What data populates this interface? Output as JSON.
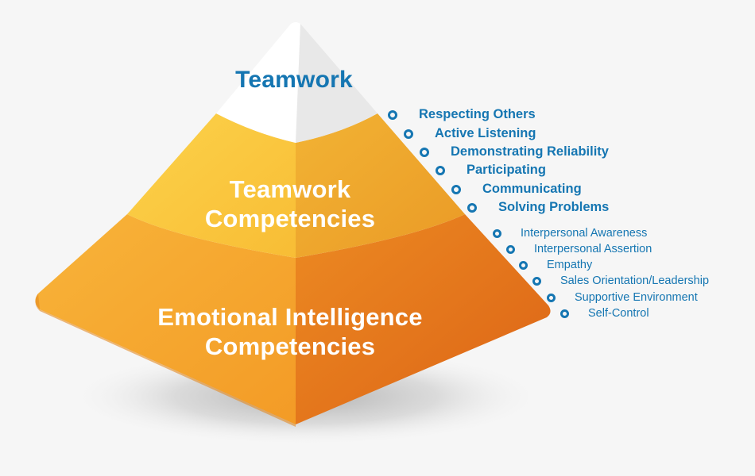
{
  "diagram": {
    "tiers": {
      "top": "Teamwork",
      "middle": [
        "Teamwork",
        "Competencies"
      ],
      "bottom": [
        "Emotional Intelligence",
        "Competencies"
      ]
    },
    "teamwork_competencies": [
      "Respecting Others",
      "Active Listening",
      "Demonstrating Reliability",
      "Participating",
      "Communicating",
      "Solving Problems"
    ],
    "emotional_intelligence_competencies": [
      "Interpersonal Awareness",
      "Interpersonal Assertion",
      "Empathy",
      "Sales Orientation/Leadership",
      "Supportive Environment",
      "Self-Control"
    ],
    "colors": {
      "text_blue": "#1576b2",
      "top_white": "#ffffff",
      "mid_yellow": "#f7c23a",
      "bottom_orange": "#f29a2a",
      "background": "#f6f6f6"
    }
  }
}
